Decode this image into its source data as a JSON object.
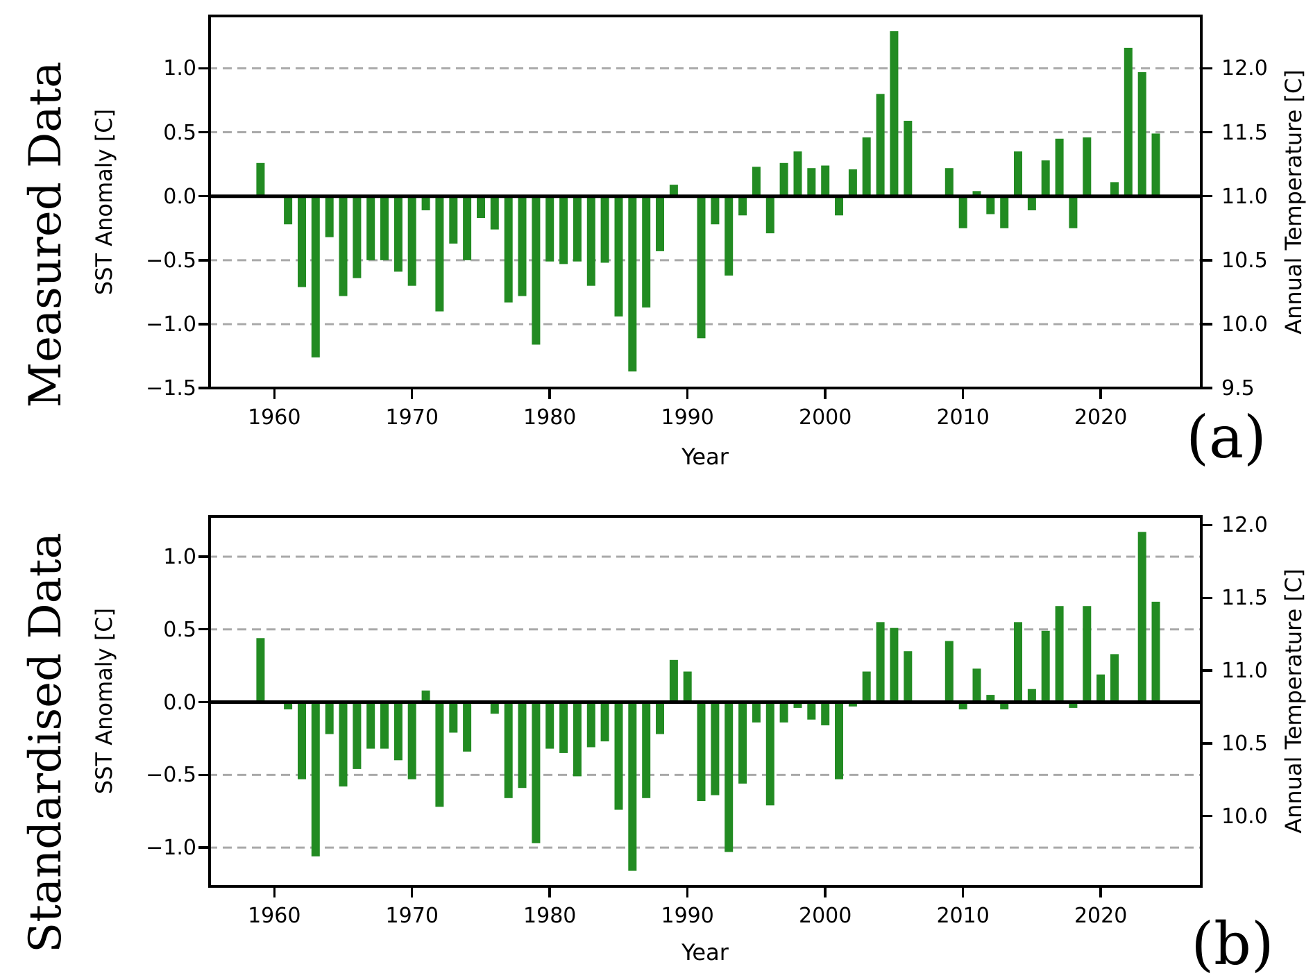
{
  "figure": {
    "background_color": "#ffffff",
    "bar_color": "#228b22",
    "grid_color": "#a9a9a9",
    "axis_color": "#000000"
  },
  "chart_data": [
    {
      "type": "bar",
      "row_title": "Measured Data",
      "tag": "(a)",
      "xlabel": "Year",
      "ylabel_left": "SST Anomaly [C]",
      "ylabel_right": "Annual Temperature [C]",
      "bar_color": "#228b22",
      "grid_on": true,
      "grid_values": [
        1.0,
        0.5,
        -0.5,
        -1.0
      ],
      "xlim": [
        1955.2,
        2027.4
      ],
      "ylim": [
        -1.51,
        1.42
      ],
      "x_tick_years": [
        1960,
        1970,
        1980,
        1990,
        2000,
        2010,
        2020
      ],
      "y_ticks_left": {
        "labels": [
          "1.0",
          "0.5",
          "0.0",
          "−0.5",
          "−1.0",
          "−1.5"
        ],
        "values": [
          1.0,
          0.5,
          0.0,
          -0.5,
          -1.0,
          -1.5
        ]
      },
      "y_ticks_right": {
        "labels": [
          "12.0",
          "11.5",
          "11.0",
          "10.5",
          "10.0",
          "9.5"
        ],
        "values": [
          1.0,
          0.5,
          0.0,
          -0.5,
          -1.0,
          -1.5
        ]
      },
      "years": [
        1959,
        1960,
        1961,
        1962,
        1963,
        1964,
        1965,
        1966,
        1967,
        1968,
        1969,
        1970,
        1971,
        1972,
        1973,
        1974,
        1975,
        1976,
        1977,
        1978,
        1979,
        1980,
        1981,
        1982,
        1983,
        1984,
        1985,
        1986,
        1987,
        1988,
        1989,
        1990,
        1991,
        1992,
        1993,
        1994,
        1995,
        1996,
        1997,
        1998,
        1999,
        2000,
        2001,
        2002,
        2003,
        2004,
        2005,
        2006,
        2007,
        2008,
        2009,
        2010,
        2011,
        2012,
        2013,
        2014,
        2015,
        2016,
        2017,
        2018,
        2019,
        2020,
        2021,
        2022,
        2023,
        2024
      ],
      "values": [
        0.26,
        null,
        -0.22,
        -0.71,
        -1.26,
        -0.32,
        -0.78,
        -0.64,
        -0.5,
        -0.5,
        -0.59,
        -0.7,
        -0.11,
        -0.9,
        -0.37,
        -0.5,
        -0.17,
        -0.26,
        -0.83,
        -0.78,
        -1.16,
        -0.51,
        -0.53,
        -0.51,
        -0.7,
        -0.52,
        -0.94,
        -1.37,
        -0.87,
        -0.43,
        0.09,
        null,
        -1.11,
        -0.22,
        -0.62,
        -0.15,
        0.23,
        -0.29,
        0.26,
        0.35,
        0.22,
        0.24,
        -0.15,
        0.21,
        0.46,
        0.8,
        1.29,
        0.59,
        null,
        null,
        0.22,
        -0.25,
        0.04,
        -0.14,
        -0.25,
        0.35,
        -0.11,
        0.28,
        0.45,
        -0.25,
        0.46,
        null,
        0.11,
        1.16,
        0.97,
        0.49
      ]
    },
    {
      "type": "bar",
      "row_title": "Standardised Data",
      "tag": "(b)",
      "xlabel": "Year",
      "ylabel_left": "SST Anomaly [C]",
      "ylabel_right": "Annual Temperature [C]",
      "bar_color": "#228b22",
      "grid_on": true,
      "grid_values": [
        1.0,
        0.5,
        -0.5,
        -1.0
      ],
      "xlim": [
        1955.2,
        2027.4
      ],
      "ylim": [
        -1.276,
        1.286
      ],
      "x_tick_years": [
        1960,
        1970,
        1980,
        1990,
        2000,
        2010,
        2020
      ],
      "y_ticks_left": {
        "labels": [
          "1.0",
          "0.5",
          "0.0",
          "−0.5",
          "−1.0"
        ],
        "values": [
          1.0,
          0.5,
          0.0,
          -0.5,
          -1.0
        ]
      },
      "y_ticks_right": {
        "labels": [
          "12.0",
          "11.5",
          "11.0",
          "10.5",
          "10.0"
        ],
        "values": [
          1.217,
          0.717,
          0.217,
          -0.283,
          -0.783
        ]
      },
      "years": [
        1959,
        1960,
        1961,
        1962,
        1963,
        1964,
        1965,
        1966,
        1967,
        1968,
        1969,
        1970,
        1971,
        1972,
        1973,
        1974,
        1975,
        1976,
        1977,
        1978,
        1979,
        1980,
        1981,
        1982,
        1983,
        1984,
        1985,
        1986,
        1987,
        1988,
        1989,
        1990,
        1991,
        1992,
        1993,
        1994,
        1995,
        1996,
        1997,
        1998,
        1999,
        2000,
        2001,
        2002,
        2003,
        2004,
        2005,
        2006,
        2007,
        2008,
        2009,
        2010,
        2011,
        2012,
        2013,
        2014,
        2015,
        2016,
        2017,
        2018,
        2019,
        2020,
        2021,
        2022,
        2023,
        2024
      ],
      "values": [
        0.44,
        null,
        -0.05,
        -0.53,
        -1.06,
        -0.22,
        -0.58,
        -0.46,
        -0.32,
        -0.32,
        -0.4,
        -0.53,
        0.08,
        -0.72,
        -0.21,
        -0.34,
        null,
        -0.08,
        -0.66,
        -0.59,
        -0.97,
        -0.32,
        -0.35,
        -0.51,
        -0.31,
        -0.27,
        -0.74,
        -1.16,
        -0.66,
        -0.22,
        0.29,
        0.21,
        -0.68,
        -0.64,
        -1.03,
        -0.56,
        -0.14,
        -0.71,
        -0.14,
        -0.04,
        -0.12,
        -0.16,
        -0.53,
        -0.03,
        0.21,
        0.55,
        0.51,
        0.35,
        null,
        null,
        0.42,
        -0.05,
        0.23,
        0.05,
        -0.05,
        0.55,
        0.09,
        0.49,
        0.66,
        -0.04,
        0.66,
        0.19,
        0.33,
        null,
        1.17,
        0.69
      ]
    }
  ]
}
